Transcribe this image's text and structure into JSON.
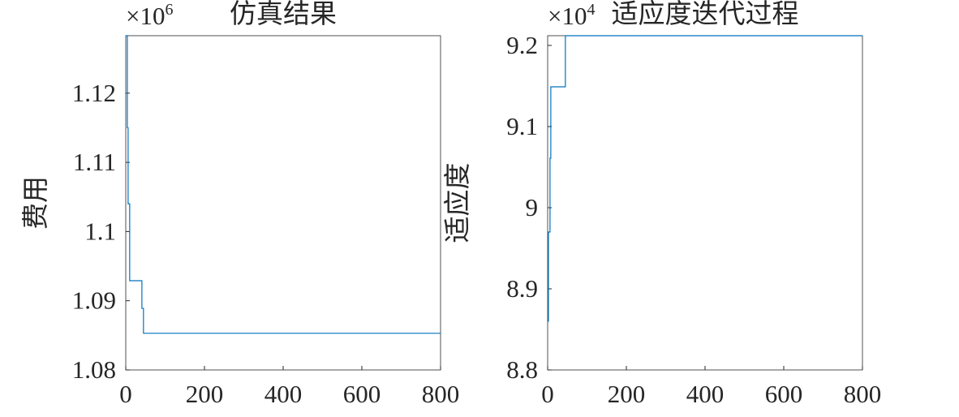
{
  "chart_data": [
    {
      "type": "line",
      "title": "仿真结果",
      "y_label": "费用",
      "y_multiplier": "×10",
      "y_multiplier_power": "6",
      "x": [
        0,
        4,
        6,
        10,
        41,
        45,
        800
      ],
      "series": [
        {
          "color": "#0072bd",
          "values": [
            1.1283,
            1.115,
            1.104,
            1.0929,
            1.0889,
            1.0853,
            1.0853
          ]
        }
      ],
      "step": true,
      "xlim": [
        0,
        800
      ],
      "xticks": [
        0,
        200,
        400,
        600,
        800
      ],
      "ylim": [
        1.08,
        1.1283
      ],
      "yticks": [
        1.08,
        1.09,
        1.1,
        1.11,
        1.12
      ]
    },
    {
      "type": "line",
      "title": "适应度迭代过程",
      "y_label": "适应度",
      "y_multiplier": "×10",
      "y_multiplier_power": "4",
      "x": [
        0,
        2,
        6,
        8,
        45,
        800
      ],
      "series": [
        {
          "color": "#0072bd",
          "values": [
            8.86,
            8.97,
            9.061,
            9.149,
            9.212,
            9.212
          ]
        }
      ],
      "step": true,
      "xlim": [
        0,
        800
      ],
      "xticks": [
        0,
        200,
        400,
        600,
        800
      ],
      "ylim": [
        8.8,
        9.212
      ],
      "yticks": [
        8.8,
        8.9,
        9,
        9.1,
        9.2
      ]
    }
  ]
}
